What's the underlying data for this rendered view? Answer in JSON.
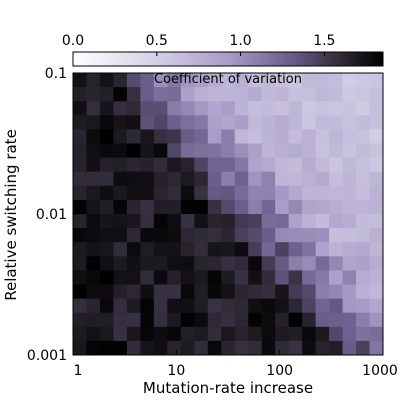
{
  "chart_data": {
    "type": "heatmap",
    "xlabel": "Mutation-rate increase",
    "ylabel": "Relative switching rate",
    "x_scale": "log",
    "y_scale": "log",
    "xlim": [
      1,
      1000
    ],
    "ylim": [
      0.001,
      0.1
    ],
    "x_ticks": [
      1,
      10,
      100,
      1000
    ],
    "x_tick_labels": [
      "1",
      "10",
      "100",
      "1000"
    ],
    "y_ticks": [
      0.1,
      0.01,
      0.001
    ],
    "y_tick_labels": [
      "0.1",
      "0.01",
      "0.001"
    ],
    "colorbar": {
      "label": "Coefficient of variation",
      "range": [
        0,
        1.85
      ],
      "ticks": [
        0,
        0.5,
        1,
        1.5
      ],
      "tick_labels": [
        "0.0",
        "0.5",
        "1.0",
        "1.5"
      ],
      "colormap": [
        "#ffffff",
        "#d8d4e8",
        "#a89cc8",
        "#6a5f8c",
        "#2a2530",
        "#000000"
      ]
    },
    "grid_columns": 23,
    "grid_rows": 20,
    "cv_model": {
      "description": "approximate coefficient of variation across the grid",
      "note": "dark region for low mutation-rate increase, pale/lavender region toward high mutation-rate and high switching rate"
    }
  }
}
